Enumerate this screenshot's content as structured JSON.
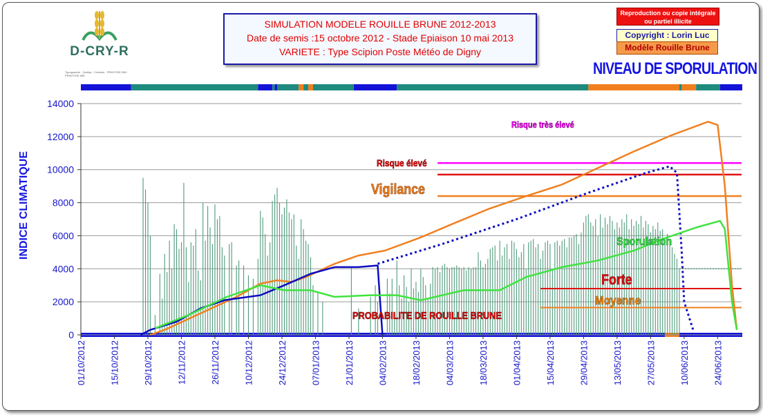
{
  "logo": {
    "name": "D-CRY-R",
    "small_text": "Typographie · Quétay · Création · PRINTOSE 5B4 · PRINTOSE 5B4"
  },
  "title": {
    "line1": "SIMULATION MODELE ROUILLE BRUNE 2012-2013",
    "line2": "Date de semis :15 octobre 2012 - Stade Epiaison 10 mai 2013",
    "line3": "VARIETE : Type Scipion   Poste Météo de Digny"
  },
  "notice": {
    "reproduction": "Reproduction ou copie intégrale ou partiel illicite",
    "copyright": "Copyright : Lorin Luc",
    "modele": "Modèle Rouille Brune"
  },
  "heading": "NIVEAU DE SPORULATION",
  "colors": {
    "orange": "#f07f1e",
    "blue": "#0c0cc0",
    "green": "#3ee33e",
    "bars": "#4f9a7b",
    "magenta": "#ff00ff",
    "red": "#e01010"
  },
  "chart_data": {
    "type": "line",
    "ylabel": "INDICE CLIMATIQUE",
    "xlabel": "",
    "ylim": [
      0,
      14000
    ],
    "yticks": [
      0,
      2000,
      4000,
      6000,
      8000,
      10000,
      12000,
      14000
    ],
    "xlim": [
      "2012-10-01",
      "2013-07-04"
    ],
    "xticks": [
      "01/10/2012",
      "15/10/2012",
      "29/10/2012",
      "12/11/2012",
      "26/11/2012",
      "10/12/2012",
      "24/12/2012",
      "07/01/2013",
      "21/01/2013",
      "04/02/2013",
      "18/02/2013",
      "04/03/2013",
      "18/03/2013",
      "01/04/2013",
      "15/04/2013",
      "29/04/2013",
      "13/05/2013",
      "27/05/2013",
      "10/06/2013",
      "24/06/2013"
    ],
    "grid": "horizontal",
    "thresholds": [
      {
        "label": "Risque très élevé",
        "value": 10400,
        "x_start": "2013-02-27",
        "color": "#ff00ff"
      },
      {
        "label": "Risque élevé",
        "value": 9700,
        "x_start": "2013-02-27",
        "color": "#e01010"
      },
      {
        "label": "Vigilance",
        "value": 8400,
        "x_start": "2013-02-27",
        "color": "#f07f1e"
      },
      {
        "label": "Forte",
        "value": 2800,
        "x_start": "2013-04-11",
        "color": "#e01010"
      },
      {
        "label": "Moyenne",
        "value": 1650,
        "x_start": "2013-04-11",
        "color": "#f07f1e"
      }
    ],
    "annotations": [
      {
        "text": "Sporulation",
        "color": "#3ee33e"
      },
      {
        "text": "PROBABILITE DE ROUILLE BRUNE",
        "color": "#e01010"
      }
    ],
    "series": [
      {
        "label": "orange",
        "color": "#f07f1e",
        "points": [
          [
            "2012-10-30",
            0
          ],
          [
            "2012-11-05",
            300
          ],
          [
            "2012-11-20",
            1300
          ],
          [
            "2012-12-05",
            2300
          ],
          [
            "2012-12-15",
            3100
          ],
          [
            "2012-12-22",
            3300
          ],
          [
            "2012-12-28",
            3200
          ],
          [
            "2013-01-03",
            3500
          ],
          [
            "2013-01-15",
            4300
          ],
          [
            "2013-01-25",
            4800
          ],
          [
            "2013-02-05",
            5100
          ],
          [
            "2013-02-20",
            5900
          ],
          [
            "2013-03-05",
            6700
          ],
          [
            "2013-03-20",
            7600
          ],
          [
            "2013-04-05",
            8400
          ],
          [
            "2013-04-20",
            9100
          ],
          [
            "2013-05-05",
            10100
          ],
          [
            "2013-05-20",
            11100
          ],
          [
            "2013-06-05",
            12100
          ],
          [
            "2013-06-20",
            12900
          ],
          [
            "2013-06-24",
            12700
          ],
          [
            "2013-06-27",
            9000
          ],
          [
            "2013-06-30",
            3000
          ],
          [
            "2013-07-02",
            300
          ]
        ]
      },
      {
        "label": "blue",
        "color": "#0c0cc0",
        "points": [
          [
            "2012-10-26",
            0
          ],
          [
            "2012-10-30",
            300
          ],
          [
            "2012-11-10",
            800
          ],
          [
            "2012-11-20",
            1600
          ],
          [
            "2012-11-30",
            2100
          ],
          [
            "2012-12-10",
            2300
          ],
          [
            "2012-12-15",
            2400
          ],
          [
            "2012-12-25",
            3000
          ],
          [
            "2013-01-05",
            3700
          ],
          [
            "2013-01-15",
            4100
          ],
          [
            "2013-01-25",
            4100
          ],
          [
            "2013-02-02",
            4200
          ],
          [
            "2013-02-03",
            2000
          ],
          [
            "2013-02-04",
            0
          ]
        ]
      },
      {
        "label": "blue dotted",
        "color": "#0c0cc0",
        "points": [
          [
            "2013-02-02",
            4300
          ],
          [
            "2013-03-01",
            5500
          ],
          [
            "2013-04-01",
            7000
          ],
          [
            "2013-05-01",
            8600
          ],
          [
            "2013-05-25",
            9800
          ],
          [
            "2013-06-04",
            10200
          ],
          [
            "2013-06-07",
            9800
          ],
          [
            "2013-06-09",
            5000
          ],
          [
            "2013-06-10",
            2000
          ],
          [
            "2013-06-14",
            200
          ]
        ]
      },
      {
        "label": "green",
        "color": "#3ee33e",
        "points": [
          [
            "2012-11-01",
            400
          ],
          [
            "2012-11-15",
            1200
          ],
          [
            "2012-12-01",
            2300
          ],
          [
            "2012-12-15",
            3000
          ],
          [
            "2012-12-25",
            2700
          ],
          [
            "2013-01-05",
            2700
          ],
          [
            "2013-01-15",
            2300
          ],
          [
            "2013-01-30",
            2400
          ],
          [
            "2013-02-10",
            2400
          ],
          [
            "2013-02-20",
            2100
          ],
          [
            "2013-03-10",
            2700
          ],
          [
            "2013-03-25",
            2700
          ],
          [
            "2013-04-05",
            3500
          ],
          [
            "2013-04-20",
            4100
          ],
          [
            "2013-05-05",
            4500
          ],
          [
            "2013-05-20",
            5100
          ],
          [
            "2013-06-01",
            5800
          ],
          [
            "2013-06-15",
            6500
          ],
          [
            "2013-06-25",
            6900
          ],
          [
            "2013-06-27",
            6400
          ],
          [
            "2013-06-30",
            2000
          ],
          [
            "2013-07-02",
            300
          ]
        ]
      }
    ],
    "bars": [
      [
        "2012-10-27",
        9500
      ],
      [
        "2012-10-28",
        8800
      ],
      [
        "2012-10-29",
        8000
      ],
      [
        "2012-10-30",
        6000
      ],
      [
        "2012-11-01",
        1200
      ],
      [
        "2012-11-03",
        3700
      ],
      [
        "2012-11-04",
        2200
      ],
      [
        "2012-11-05",
        4900
      ],
      [
        "2012-11-06",
        3800
      ],
      [
        "2012-11-07",
        5700
      ],
      [
        "2012-11-08",
        4000
      ],
      [
        "2012-11-09",
        6700
      ],
      [
        "2012-11-10",
        6400
      ],
      [
        "2012-11-11",
        5200
      ],
      [
        "2012-11-12",
        5600
      ],
      [
        "2012-11-13",
        9200
      ],
      [
        "2012-11-14",
        5300
      ],
      [
        "2012-11-15",
        3200
      ],
      [
        "2012-11-16",
        5600
      ],
      [
        "2012-11-17",
        5400
      ],
      [
        "2012-11-18",
        6400
      ],
      [
        "2012-11-19",
        3900
      ],
      [
        "2012-11-20",
        3300
      ],
      [
        "2012-11-21",
        8000
      ],
      [
        "2012-11-22",
        5700
      ],
      [
        "2012-11-23",
        7800
      ],
      [
        "2012-11-24",
        6500
      ],
      [
        "2012-11-25",
        5500
      ],
      [
        "2012-11-26",
        7900
      ],
      [
        "2012-11-27",
        7000
      ],
      [
        "2012-11-28",
        7200
      ],
      [
        "2012-11-29",
        5300
      ],
      [
        "2012-11-30",
        4800
      ],
      [
        "2012-12-02",
        5500
      ],
      [
        "2012-12-03",
        5600
      ],
      [
        "2012-12-05",
        4200
      ],
      [
        "2012-12-06",
        4500
      ],
      [
        "2012-12-08",
        4200
      ],
      [
        "2012-12-10",
        3600
      ],
      [
        "2012-12-12",
        3400
      ],
      [
        "2012-12-14",
        4600
      ],
      [
        "2012-12-15",
        7500
      ],
      [
        "2012-12-16",
        7100
      ],
      [
        "2012-12-17",
        6100
      ],
      [
        "2012-12-18",
        4800
      ],
      [
        "2012-12-19",
        5600
      ],
      [
        "2012-12-20",
        8100
      ],
      [
        "2012-12-21",
        8500
      ],
      [
        "2012-12-22",
        8900
      ],
      [
        "2012-12-23",
        8000
      ],
      [
        "2012-12-24",
        7300
      ],
      [
        "2012-12-25",
        7700
      ],
      [
        "2012-12-26",
        8200
      ],
      [
        "2012-12-27",
        7400
      ],
      [
        "2012-12-28",
        7000
      ],
      [
        "2012-12-29",
        7300
      ],
      [
        "2012-12-30",
        5400
      ],
      [
        "2012-12-31",
        4600
      ],
      [
        "2013-01-01",
        7000
      ],
      [
        "2013-01-02",
        6400
      ],
      [
        "2013-01-03",
        5700
      ],
      [
        "2013-01-04",
        5500
      ],
      [
        "2013-01-05",
        4700
      ],
      [
        "2013-01-06",
        3000
      ],
      [
        "2013-01-08",
        2600
      ],
      [
        "2013-01-10",
        2000
      ],
      [
        "2013-01-22",
        4100
      ],
      [
        "2013-01-25",
        1600
      ],
      [
        "2013-01-30",
        2300
      ],
      [
        "2013-02-01",
        3000
      ],
      [
        "2013-02-02",
        2000
      ],
      [
        "2013-02-06",
        3400
      ],
      [
        "2013-02-07",
        2500
      ],
      [
        "2013-02-08",
        3400
      ],
      [
        "2013-02-09",
        1200
      ],
      [
        "2013-02-10",
        4500
      ],
      [
        "2013-02-11",
        3000
      ],
      [
        "2013-02-12",
        2200
      ],
      [
        "2013-02-13",
        3600
      ],
      [
        "2013-02-14",
        2900
      ],
      [
        "2013-02-15",
        2000
      ],
      [
        "2013-02-16",
        4000
      ],
      [
        "2013-02-17",
        2800
      ],
      [
        "2013-02-18",
        3200
      ],
      [
        "2013-02-19",
        2600
      ],
      [
        "2013-02-20",
        4000
      ],
      [
        "2013-02-21",
        3500
      ],
      [
        "2013-02-22",
        3000
      ],
      [
        "2013-02-23",
        2200
      ],
      [
        "2013-02-24",
        3100
      ],
      [
        "2013-02-25",
        4100
      ],
      [
        "2013-02-26",
        4000
      ],
      [
        "2013-02-27",
        4100
      ],
      [
        "2013-02-28",
        3800
      ],
      [
        "2013-03-01",
        4200
      ],
      [
        "2013-03-02",
        4300
      ],
      [
        "2013-03-03",
        4100
      ],
      [
        "2013-03-04",
        4000
      ],
      [
        "2013-03-05",
        4100
      ],
      [
        "2013-03-06",
        4100
      ],
      [
        "2013-03-07",
        4200
      ],
      [
        "2013-03-08",
        4100
      ],
      [
        "2013-03-09",
        4000
      ],
      [
        "2013-03-10",
        4100
      ],
      [
        "2013-03-11",
        3900
      ],
      [
        "2013-03-12",
        4100
      ],
      [
        "2013-03-13",
        4000
      ],
      [
        "2013-03-14",
        4100
      ],
      [
        "2013-03-15",
        4100
      ],
      [
        "2013-03-16",
        5000
      ],
      [
        "2013-03-17",
        4500
      ],
      [
        "2013-03-18",
        4100
      ],
      [
        "2013-03-19",
        4300
      ],
      [
        "2013-03-20",
        4600
      ],
      [
        "2013-03-21",
        5200
      ],
      [
        "2013-03-22",
        5300
      ],
      [
        "2013-03-23",
        5400
      ],
      [
        "2013-03-24",
        4500
      ],
      [
        "2013-03-25",
        5700
      ],
      [
        "2013-03-26",
        4800
      ],
      [
        "2013-03-27",
        5300
      ],
      [
        "2013-03-28",
        5500
      ],
      [
        "2013-03-29",
        4600
      ],
      [
        "2013-03-30",
        5700
      ],
      [
        "2013-03-31",
        5600
      ],
      [
        "2013-04-01",
        5200
      ],
      [
        "2013-04-02",
        4700
      ],
      [
        "2013-04-03",
        5000
      ],
      [
        "2013-04-04",
        5500
      ],
      [
        "2013-04-05",
        4000
      ],
      [
        "2013-04-06",
        5600
      ],
      [
        "2013-04-07",
        5700
      ],
      [
        "2013-04-08",
        5800
      ],
      [
        "2013-04-09",
        5300
      ],
      [
        "2013-04-10",
        5500
      ],
      [
        "2013-04-11",
        4600
      ],
      [
        "2013-04-12",
        5100
      ],
      [
        "2013-04-13",
        5600
      ],
      [
        "2013-04-14",
        5700
      ],
      [
        "2013-04-15",
        5500
      ],
      [
        "2013-04-16",
        4000
      ],
      [
        "2013-04-17",
        5600
      ],
      [
        "2013-04-18",
        5700
      ],
      [
        "2013-04-19",
        5400
      ],
      [
        "2013-04-20",
        5700
      ],
      [
        "2013-04-21",
        5800
      ],
      [
        "2013-04-22",
        5300
      ],
      [
        "2013-04-23",
        5900
      ],
      [
        "2013-04-24",
        5900
      ],
      [
        "2013-04-25",
        6000
      ],
      [
        "2013-04-26",
        6100
      ],
      [
        "2013-04-27",
        5500
      ],
      [
        "2013-04-28",
        6200
      ],
      [
        "2013-04-29",
        6800
      ],
      [
        "2013-04-30",
        7200
      ],
      [
        "2013-05-01",
        7300
      ],
      [
        "2013-05-02",
        6800
      ],
      [
        "2013-05-03",
        6600
      ],
      [
        "2013-05-04",
        7000
      ],
      [
        "2013-05-05",
        6000
      ],
      [
        "2013-05-06",
        7300
      ],
      [
        "2013-05-07",
        6500
      ],
      [
        "2013-05-08",
        7100
      ],
      [
        "2013-05-09",
        6700
      ],
      [
        "2013-05-10",
        7200
      ],
      [
        "2013-05-11",
        6900
      ],
      [
        "2013-05-12",
        6400
      ],
      [
        "2013-05-13",
        6800
      ],
      [
        "2013-05-14",
        6500
      ],
      [
        "2013-05-15",
        7000
      ],
      [
        "2013-05-16",
        6800
      ],
      [
        "2013-05-17",
        7300
      ],
      [
        "2013-05-18",
        6400
      ],
      [
        "2013-05-19",
        7000
      ],
      [
        "2013-05-20",
        6600
      ],
      [
        "2013-05-21",
        6900
      ],
      [
        "2013-05-22",
        6700
      ],
      [
        "2013-05-23",
        7200
      ],
      [
        "2013-05-24",
        6500
      ],
      [
        "2013-05-25",
        6900
      ],
      [
        "2013-05-26",
        6700
      ],
      [
        "2013-05-27",
        6200
      ],
      [
        "2013-05-28",
        6600
      ],
      [
        "2013-05-29",
        6400
      ],
      [
        "2013-05-30",
        6800
      ],
      [
        "2013-05-31",
        6300
      ],
      [
        "2013-06-01",
        6400
      ],
      [
        "2013-06-02",
        5800
      ],
      [
        "2013-06-03",
        6100
      ],
      [
        "2013-06-04",
        5700
      ],
      [
        "2013-06-05",
        5300
      ],
      [
        "2013-06-06",
        4900
      ],
      [
        "2013-06-07",
        4600
      ],
      [
        "2013-06-08",
        4000
      ]
    ],
    "green_tail": {
      "from": "2013-06-08",
      "to": "2013-07-04",
      "value": 4000
    },
    "status_bar": {
      "top": [
        [
          "2012-10-01",
          "blue"
        ],
        [
          "2012-10-22",
          "teal"
        ],
        [
          "2012-12-14",
          "blue"
        ],
        [
          "2012-12-20",
          "teal"
        ],
        [
          "2012-12-21",
          "blue"
        ],
        [
          "2012-12-22",
          "teal"
        ],
        [
          "2012-12-31",
          "orange"
        ],
        [
          "2013-01-02",
          "teal"
        ],
        [
          "2013-01-04",
          "orange"
        ],
        [
          "2013-01-06",
          "teal"
        ],
        [
          "2013-01-23",
          "blue"
        ],
        [
          "2013-02-10",
          "teal"
        ],
        [
          "2013-05-01",
          "orange"
        ],
        [
          "2013-06-08",
          "teal"
        ],
        [
          "2013-06-09",
          "orange"
        ],
        [
          "2013-06-15",
          "teal"
        ],
        [
          "2013-06-25",
          "blue"
        ]
      ],
      "bottom": [
        [
          "2012-10-01",
          "blue"
        ],
        [
          "2013-06-02",
          "orange"
        ],
        [
          "2013-06-08",
          "blue"
        ]
      ]
    }
  }
}
